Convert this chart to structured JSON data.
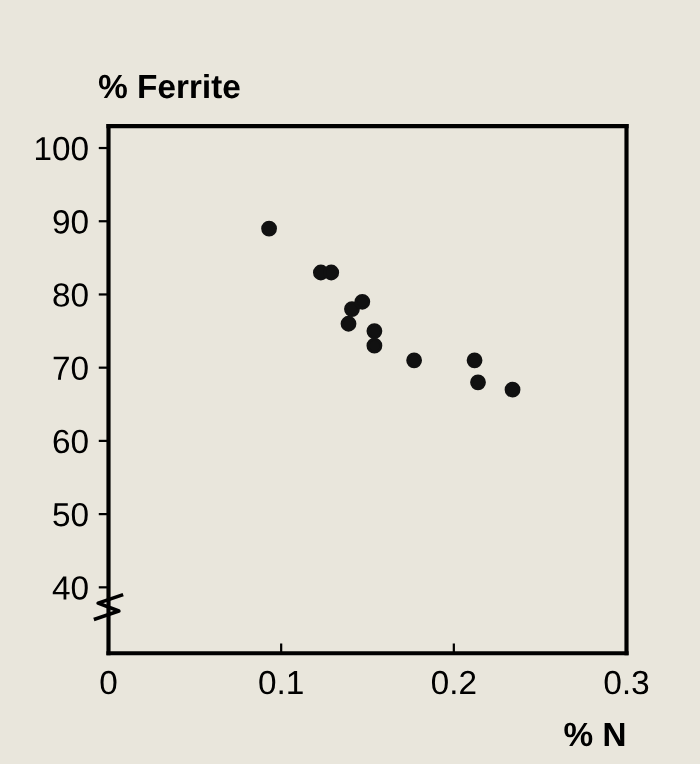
{
  "chart_data": {
    "type": "scatter",
    "ylabel": "% Ferrite",
    "xlabel": "% N",
    "series": [
      {
        "color": "#111111",
        "x": [
          0.093,
          0.123,
          0.129,
          0.139,
          0.141,
          0.147,
          0.154,
          0.154,
          0.177,
          0.212,
          0.214,
          0.234
        ],
        "values": [
          89,
          83,
          83,
          76,
          78,
          79,
          75,
          73,
          71,
          71,
          68,
          67
        ]
      }
    ],
    "xlim": [
      0,
      0.3
    ],
    "ylim": [
      31,
      103
    ],
    "xticks": [
      0,
      0.1,
      0.2,
      0.3
    ],
    "yticks": [
      40,
      50,
      60,
      70,
      80,
      90,
      100
    ],
    "grid": false,
    "marker": "circle"
  }
}
